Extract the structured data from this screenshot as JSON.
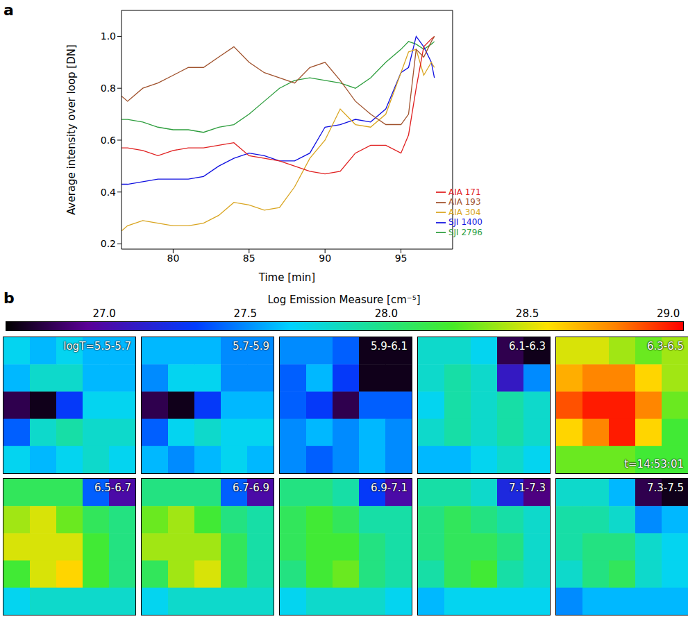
{
  "chart_data": [
    {
      "panel": "a",
      "type": "line",
      "xlabel": "Time [min]",
      "ylabel": "Average intensity over loop [DN]",
      "x": [
        76.6,
        77,
        78,
        79,
        80,
        81,
        82,
        83,
        84,
        85,
        86,
        87,
        88,
        89,
        90,
        91,
        92,
        93,
        94,
        95,
        95.5,
        96,
        96.5,
        97,
        97.2
      ],
      "xlim": [
        76.6,
        98.4
      ],
      "xticks": [
        80,
        85,
        90,
        95
      ],
      "ylim": [
        0.18,
        1.1
      ],
      "yticks": [
        0.2,
        0.4,
        0.6,
        0.8,
        {
          "value": 1.0,
          "label": "1.0"
        }
      ],
      "legend": "lower right",
      "series": [
        {
          "name": "SJI 2796",
          "color": "#2e9e3e",
          "values": [
            0.68,
            0.68,
            0.67,
            0.65,
            0.64,
            0.64,
            0.63,
            0.65,
            0.66,
            0.7,
            0.75,
            0.8,
            0.83,
            0.84,
            0.83,
            0.82,
            0.8,
            0.84,
            0.9,
            0.95,
            0.98,
            0.97,
            0.95,
            0.97,
            0.98
          ]
        },
        {
          "name": "SJI 1400",
          "color": "#1010e0",
          "values": [
            0.43,
            0.43,
            0.44,
            0.45,
            0.45,
            0.45,
            0.46,
            0.5,
            0.53,
            0.55,
            0.54,
            0.52,
            0.52,
            0.55,
            0.65,
            0.66,
            0.68,
            0.67,
            0.72,
            0.86,
            0.88,
            1.0,
            0.96,
            0.9,
            0.84
          ]
        },
        {
          "name": "AIA 304",
          "color": "#d9a520",
          "values": [
            0.25,
            0.27,
            0.29,
            0.28,
            0.27,
            0.27,
            0.28,
            0.31,
            0.36,
            0.35,
            0.33,
            0.34,
            0.42,
            0.53,
            0.6,
            0.72,
            0.66,
            0.65,
            0.7,
            0.86,
            0.94,
            0.95,
            0.85,
            0.9,
            0.88
          ]
        },
        {
          "name": "AIA 171",
          "color": "#e02020",
          "values": [
            0.57,
            0.57,
            0.56,
            0.54,
            0.56,
            0.57,
            0.57,
            0.58,
            0.59,
            0.54,
            0.53,
            0.52,
            0.5,
            0.48,
            0.47,
            0.48,
            0.55,
            0.58,
            0.58,
            0.55,
            0.62,
            0.8,
            0.96,
            0.99,
            1.0
          ]
        },
        {
          "name": "AIA 193",
          "color": "#a0522d",
          "values": [
            0.77,
            0.75,
            0.8,
            0.82,
            0.85,
            0.88,
            0.88,
            0.92,
            0.96,
            0.9,
            0.86,
            0.84,
            0.82,
            0.88,
            0.9,
            0.83,
            0.75,
            0.7,
            0.66,
            0.66,
            0.7,
            0.95,
            0.92,
            0.98,
            1.0
          ]
        }
      ]
    },
    {
      "panel": "b",
      "type": "heatmap",
      "colorbar": {
        "label": "Log Emission Measure [cm⁻⁵]",
        "range": [
          26.65,
          29.05
        ],
        "ticks": [
          {
            "value": 27,
            "label": "27.0"
          },
          27.5,
          {
            "value": 28,
            "label": "28.0"
          },
          28.5,
          {
            "value": 29,
            "label": "29.0"
          }
        ]
      },
      "maps": [
        {
          "label": "logT=5.5-5.7",
          "cells": [
            [
              27.7,
              27.6,
              27.7,
              27.6,
              27.6
            ],
            [
              27.6,
              27.8,
              27.8,
              27.6,
              27.6
            ],
            [
              26.8,
              26.7,
              27.3,
              27.7,
              27.7
            ],
            [
              27.4,
              27.8,
              27.9,
              27.8,
              27.8
            ],
            [
              27.7,
              27.6,
              27.7,
              27.8,
              27.7
            ]
          ]
        },
        {
          "label": "5.7-5.9",
          "cells": [
            [
              27.6,
              27.6,
              27.6,
              27.5,
              27.5
            ],
            [
              27.5,
              27.7,
              27.7,
              27.5,
              27.5
            ],
            [
              26.8,
              26.7,
              27.3,
              27.6,
              27.6
            ],
            [
              27.4,
              27.7,
              27.8,
              27.7,
              27.7
            ],
            [
              27.6,
              27.5,
              27.6,
              27.7,
              27.6
            ]
          ]
        },
        {
          "label": "5.9-6.1",
          "cells": [
            [
              27.5,
              27.5,
              27.4,
              26.7,
              26.7
            ],
            [
              27.4,
              27.6,
              27.3,
              26.7,
              26.7
            ],
            [
              27.4,
              27.3,
              26.8,
              27.4,
              27.4
            ],
            [
              27.5,
              27.6,
              27.5,
              27.6,
              27.5
            ],
            [
              27.5,
              27.4,
              27.5,
              27.6,
              27.5
            ]
          ]
        },
        {
          "label": "6.1-6.3",
          "cells": [
            [
              27.8,
              27.8,
              27.7,
              26.8,
              26.7
            ],
            [
              27.8,
              27.9,
              27.8,
              27.1,
              27.5
            ],
            [
              27.7,
              27.9,
              27.8,
              27.9,
              27.8
            ],
            [
              27.8,
              27.9,
              27.8,
              27.9,
              27.8
            ],
            [
              27.6,
              27.6,
              27.7,
              27.8,
              27.7
            ]
          ]
        },
        {
          "label": "6.3-6.5",
          "annotation": "t=14:53:01",
          "cells": [
            [
              28.5,
              28.5,
              28.4,
              28.3,
              28.4
            ],
            [
              28.7,
              28.8,
              28.8,
              28.6,
              28.4
            ],
            [
              28.9,
              29.0,
              29.0,
              28.8,
              28.3
            ],
            [
              28.6,
              28.8,
              29.0,
              28.6,
              28.2
            ],
            [
              28.3,
              28.3,
              28.3,
              28.2,
              28.2
            ]
          ]
        },
        {
          "label": "6.5-6.7",
          "cells": [
            [
              28.1,
              28.1,
              28.1,
              27.4,
              27.0
            ],
            [
              28.4,
              28.5,
              28.3,
              28.1,
              28.0
            ],
            [
              28.5,
              28.5,
              28.5,
              28.2,
              28.0
            ],
            [
              28.2,
              28.5,
              28.6,
              28.2,
              28.0
            ],
            [
              27.7,
              27.8,
              27.8,
              27.8,
              27.8
            ]
          ]
        },
        {
          "label": "6.7-6.9",
          "cells": [
            [
              28.0,
              28.0,
              28.0,
              27.4,
              27.0
            ],
            [
              28.3,
              28.4,
              28.2,
              28.0,
              27.9
            ],
            [
              28.4,
              28.4,
              28.4,
              28.1,
              27.9
            ],
            [
              28.1,
              28.4,
              28.5,
              28.1,
              27.9
            ],
            [
              27.7,
              27.8,
              27.8,
              27.8,
              27.8
            ]
          ]
        },
        {
          "label": "6.9-7.1",
          "cells": [
            [
              28.0,
              28.0,
              27.9,
              27.3,
              27.0
            ],
            [
              28.1,
              28.2,
              28.1,
              27.9,
              27.9
            ],
            [
              28.1,
              28.2,
              28.2,
              28.0,
              27.9
            ],
            [
              28.0,
              28.2,
              28.3,
              28.0,
              27.9
            ],
            [
              27.7,
              27.8,
              27.8,
              27.8,
              27.7
            ]
          ]
        },
        {
          "label": "7.1-7.3",
          "cells": [
            [
              27.9,
              27.9,
              27.8,
              27.2,
              26.9
            ],
            [
              28.0,
              28.1,
              28.0,
              27.9,
              27.8
            ],
            [
              28.0,
              28.1,
              28.1,
              28.0,
              27.8
            ],
            [
              27.9,
              28.1,
              28.2,
              27.9,
              27.8
            ],
            [
              27.6,
              27.7,
              27.7,
              27.7,
              27.7
            ]
          ]
        },
        {
          "label": "7.3-7.5",
          "cells": [
            [
              27.8,
              27.8,
              27.6,
              26.8,
              26.7
            ],
            [
              27.9,
              27.9,
              27.8,
              27.5,
              27.6
            ],
            [
              27.9,
              28.0,
              28.0,
              27.8,
              27.7
            ],
            [
              27.8,
              28.0,
              28.1,
              27.8,
              27.7
            ],
            [
              27.5,
              27.6,
              27.6,
              27.6,
              27.6
            ]
          ]
        }
      ]
    }
  ]
}
